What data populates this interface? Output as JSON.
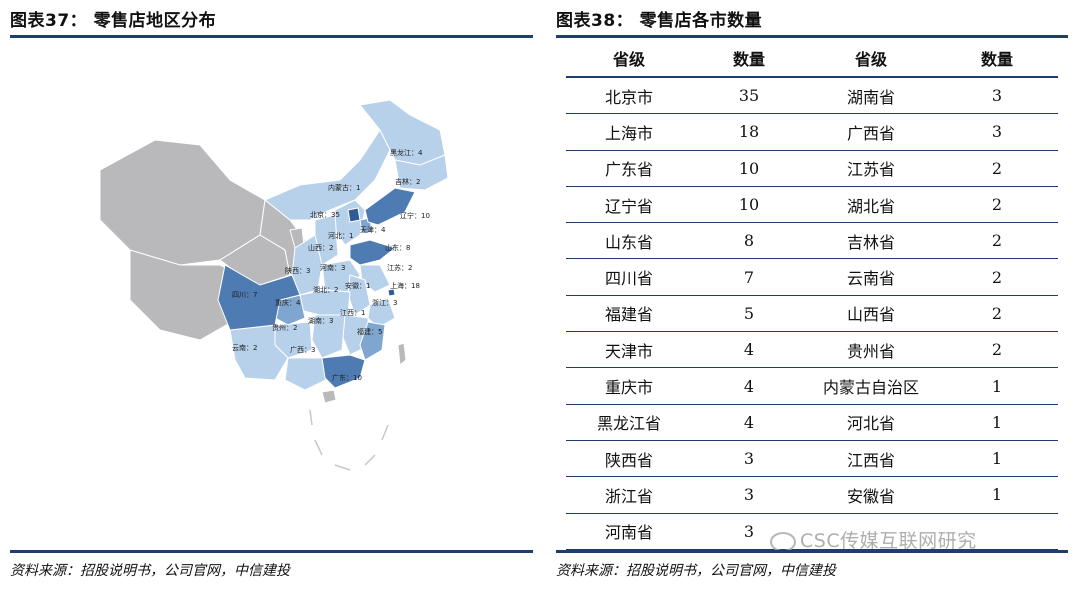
{
  "left_figure": {
    "title": "图表37：  零售店地区分布",
    "source": "资料来源：招股说明书，公司官网，中信建投",
    "map_labels": [
      {
        "text": "黑龙江：4",
        "level": "mid"
      },
      {
        "text": "吉林：2",
        "level": "low"
      },
      {
        "text": "内蒙古：1",
        "level": "low"
      },
      {
        "text": "北京：35",
        "level": "high"
      },
      {
        "text": "辽宁：10",
        "level": "high"
      },
      {
        "text": "天津：4",
        "level": "mid"
      },
      {
        "text": "河北：1",
        "level": "low"
      },
      {
        "text": "山西：2",
        "level": "low"
      },
      {
        "text": "山东：8",
        "level": "high"
      },
      {
        "text": "陕西：3",
        "level": "low"
      },
      {
        "text": "河南：3",
        "level": "low"
      },
      {
        "text": "江苏：2",
        "level": "low"
      },
      {
        "text": "安徽：1",
        "level": "low"
      },
      {
        "text": "上海：18",
        "level": "high"
      },
      {
        "text": "四川：7",
        "level": "high"
      },
      {
        "text": "湖北：2",
        "level": "low"
      },
      {
        "text": "重庆：4",
        "level": "mid"
      },
      {
        "text": "浙江：3",
        "level": "low"
      },
      {
        "text": "江西：1",
        "level": "low"
      },
      {
        "text": "湖南：3",
        "level": "low"
      },
      {
        "text": "贵州：2",
        "level": "low"
      },
      {
        "text": "福建：5",
        "level": "mid"
      },
      {
        "text": "云南：2",
        "level": "low"
      },
      {
        "text": "广西：3",
        "level": "low"
      },
      {
        "text": "广东：10",
        "level": "high"
      }
    ],
    "colors": {
      "none": "#b9b9bc",
      "low": "#b7d1ea",
      "mid": "#7fa6cf",
      "high": "#4f7bb3",
      "border": "#ffffff"
    }
  },
  "right_figure": {
    "title": "图表38：  零售店各市数量",
    "source": "资料来源：招股说明书，公司官网，中信建投",
    "headers": [
      "省级",
      "数量",
      "省级",
      "数量"
    ],
    "rows": [
      [
        "北京市",
        "35",
        "湖南省",
        "3"
      ],
      [
        "上海市",
        "18",
        "广西省",
        "3"
      ],
      [
        "广东省",
        "10",
        "江苏省",
        "2"
      ],
      [
        "辽宁省",
        "10",
        "湖北省",
        "2"
      ],
      [
        "山东省",
        "8",
        "吉林省",
        "2"
      ],
      [
        "四川省",
        "7",
        "云南省",
        "2"
      ],
      [
        "福建省",
        "5",
        "山西省",
        "2"
      ],
      [
        "天津市",
        "4",
        "贵州省",
        "2"
      ],
      [
        "重庆市",
        "4",
        "内蒙古自治区",
        "1"
      ],
      [
        "黑龙江省",
        "4",
        "河北省",
        "1"
      ],
      [
        "陕西省",
        "3",
        "江西省",
        "1"
      ],
      [
        "浙江省",
        "3",
        "安徽省",
        "1"
      ],
      [
        "河南省",
        "3",
        "",
        ""
      ]
    ]
  },
  "watermark": {
    "text": "CSC传媒互联网研究",
    "icon": "wechat-icon"
  },
  "theme": {
    "rule_color": "#1f3d6e"
  }
}
